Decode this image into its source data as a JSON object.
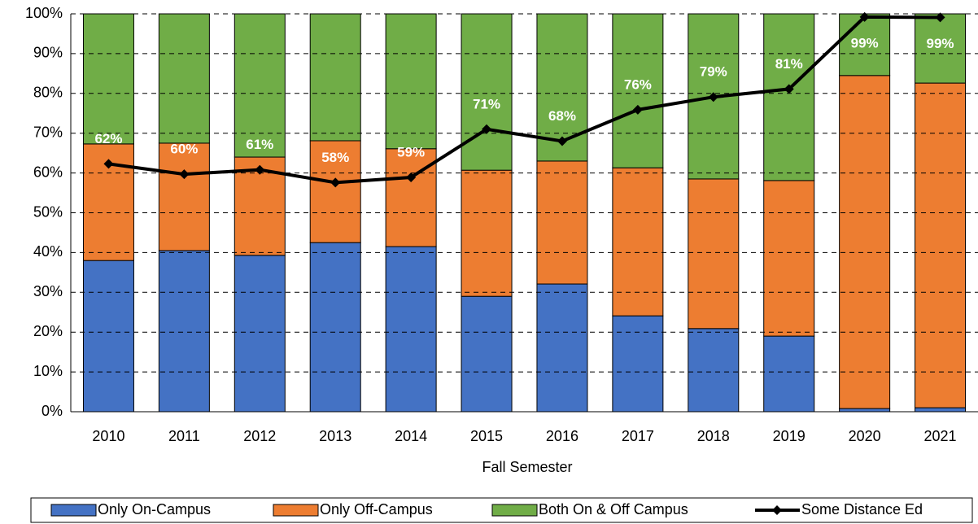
{
  "chart_data": {
    "type": "bar",
    "stacked": true,
    "x_label": "Fall Semester",
    "categories": [
      "2010",
      "2011",
      "2012",
      "2013",
      "2014",
      "2015",
      "2016",
      "2017",
      "2018",
      "2019",
      "2020",
      "2021"
    ],
    "series": [
      {
        "name": "Only On-Campus",
        "color": "#4472c4",
        "values": [
          38.0,
          40.5,
          39.3,
          42.5,
          41.5,
          29.0,
          32.1,
          24.1,
          20.9,
          19.0,
          0.8,
          1.0
        ]
      },
      {
        "name": "Only Off-Campus",
        "color": "#ed7d31",
        "values": [
          29.3,
          27.0,
          24.7,
          25.6,
          24.6,
          31.7,
          30.9,
          37.2,
          37.6,
          39.1,
          83.7,
          81.6
        ]
      },
      {
        "name": "Both On & Off Campus",
        "color": "#70ad47",
        "values": [
          32.7,
          32.5,
          36.0,
          31.9,
          33.9,
          39.3,
          37.0,
          38.7,
          41.5,
          41.9,
          15.5,
          17.4
        ]
      },
      {
        "name": "Some Distance Ed",
        "type": "line",
        "color": "#000000",
        "values": [
          62.3,
          59.7,
          60.8,
          57.6,
          58.9,
          71.0,
          68.0,
          75.9,
          79.1,
          81.1,
          99.2,
          99.1
        ],
        "value_labels": [
          "62%",
          "60%",
          "61%",
          "58%",
          "59%",
          "71%",
          "68%",
          "76%",
          "79%",
          "81%",
          "99%",
          "99%"
        ]
      }
    ],
    "ylim": [
      0,
      100
    ],
    "yticks": [
      {
        "value": 0,
        "label": "0%"
      },
      {
        "value": 10,
        "label": "10%"
      },
      {
        "value": 20,
        "label": "20%"
      },
      {
        "value": 30,
        "label": "30%"
      },
      {
        "value": 40,
        "label": "40%"
      },
      {
        "value": 50,
        "label": "50%"
      },
      {
        "value": 60,
        "label": "60%"
      },
      {
        "value": 70,
        "label": "70%"
      },
      {
        "value": 80,
        "label": "80%"
      },
      {
        "value": 90,
        "label": "90%"
      },
      {
        "value": 100,
        "label": "100%"
      }
    ],
    "grid": true,
    "legend": "bottom"
  }
}
